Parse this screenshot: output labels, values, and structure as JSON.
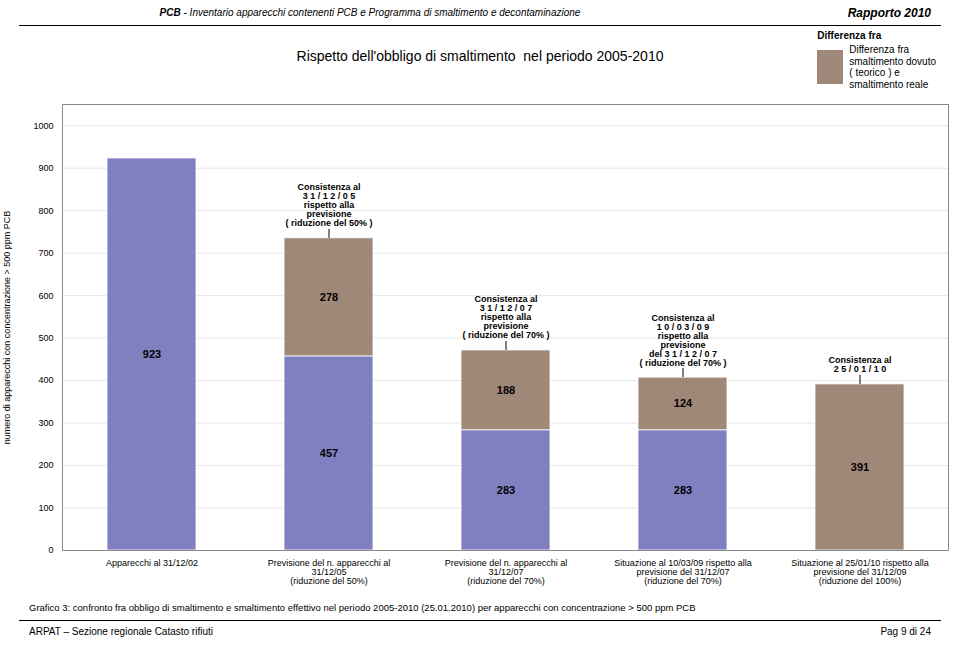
{
  "header": {
    "bold": "PCB",
    "text": " - Inventario apparecchi contenenti PCB e Programma di smaltimento e decontaminazione",
    "right": "Rapporto 2010"
  },
  "footer": {
    "left": "ARPAT – Sezione regionale Catasto rifiuti",
    "right": "Pag 9 di 24"
  },
  "caption": "Grafico 3: confronto fra obbligo di smaltimento e smaltimento effettivo nel periodo 2005-2010 (25.01.2010) per apparecchi con concentrazione > 500 ppm PCB",
  "chart_data": {
    "type": "bar",
    "title": "Rispetto dell'obbligo di smaltimento  nel periodo 2005-2010",
    "ylabel": "numero di apparecchi con concentrazione > 500 ppm PCB",
    "categories": [
      "Apparecchi al 31/12/02",
      "Previsione del n. apparecchi al\n31/12/05\n(riduzione del 50%)",
      "Previsione del n. apparecchi al\n31/12/07\n(riduzione del 70%)",
      "Situazione al 10/03/09 rispetto alla\nprevisione del 31/12/07\n(riduzione del 70%)",
      "Situazione al 25/01/10 rispetto alla\nprevisione del 31/12/09\n(riduzione del 100%)"
    ],
    "series": [
      {
        "color": "#8080c0",
        "values": [
          923,
          457,
          283,
          283,
          0
        ]
      },
      {
        "name": "Differenza fra\nsmaltimento dovuto\n( teorico ) e\nsmaltimento reale",
        "color": "#a08878",
        "values": [
          0,
          278,
          188,
          124,
          391
        ]
      }
    ],
    "stacked": true,
    "data_labels": true,
    "ylim": [
      0,
      1050
    ],
    "yticks": [
      0,
      100,
      200,
      300,
      400,
      500,
      600,
      700,
      800,
      900,
      1000
    ],
    "grid": true,
    "legend": "upper right",
    "legend_title": "Differenza fra",
    "annotations": [
      {
        "category": "Previsione del n. apparecchi al\n31/12/05\n(riduzione del 50%)",
        "text": "Consistenza al\n3 1 / 1 2 / 0 5\nrispetto alla\nprevisione\n( riduzione del 50% )"
      },
      {
        "category": "Previsione del n. apparecchi al\n31/12/07\n(riduzione del 70%)",
        "text": "Consistenza al\n3 1 / 1 2 / 0 7\nrispetto alla\nprevisione\n( riduzione del 70% )"
      },
      {
        "category": "Situazione al 10/03/09 rispetto alla\nprevisione del 31/12/07\n(riduzione del 70%)",
        "text": "Consistenza al\n1 0 / 0 3 / 0 9\nrispetto alla\nprevisione\ndel 3 1 / 1 2 / 0 7\n( riduzione del 70% )"
      },
      {
        "category": "Situazione al 25/01/10 rispetto alla\nprevisione del 31/12/09\n(riduzione del 100%)",
        "text": "Consistenza al\n2 5 / 0 1 / 1 0"
      }
    ]
  }
}
